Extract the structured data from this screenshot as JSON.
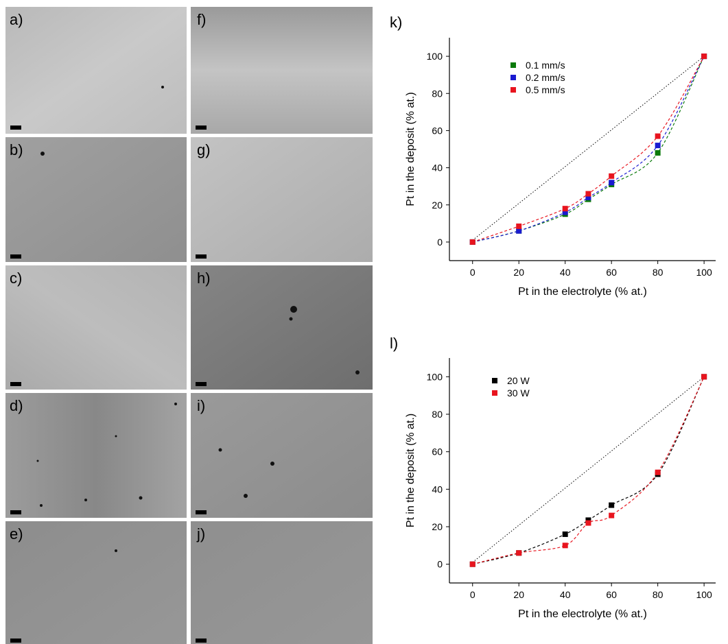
{
  "panels": [
    "a)",
    "b)",
    "c)",
    "d)",
    "e)",
    "f)",
    "g)",
    "h)",
    "i)",
    "j)"
  ],
  "chart_data": [
    {
      "type": "scatter",
      "panel": "k)",
      "x_label": "Pt in the electrolyte (% at.)",
      "y_label": "Pt in the deposit (% at.)",
      "x": [
        0,
        20,
        40,
        50,
        60,
        80,
        100
      ],
      "series": [
        {
          "name": "0.1 mm/s",
          "color": "#0a7a0a",
          "values": [
            0,
            6,
            15,
            23,
            31,
            48,
            100
          ]
        },
        {
          "name": "0.2 mm/s",
          "color": "#1a1ad0",
          "values": [
            0,
            6,
            16,
            24,
            32,
            52,
            100
          ]
        },
        {
          "name": "0.5 mm/s",
          "color": "#e8141e",
          "values": [
            0,
            8.5,
            18,
            26,
            35.5,
            57,
            100
          ]
        }
      ],
      "reference_line": {
        "x": [
          0,
          100
        ],
        "y": [
          1,
          100
        ]
      },
      "xlim": [
        -10,
        105
      ],
      "ylim": [
        -10,
        110
      ],
      "xticks": [
        0,
        20,
        40,
        60,
        80,
        100
      ],
      "yticks": [
        0,
        20,
        40,
        60,
        80,
        100
      ]
    },
    {
      "type": "scatter",
      "panel": "l)",
      "x_label": "Pt in the electrolyte (% at.)",
      "y_label": "Pt in the deposit (% at.)",
      "x": [
        0,
        20,
        40,
        50,
        60,
        80,
        100
      ],
      "series": [
        {
          "name": "20 W",
          "color": "#000000",
          "values": [
            0,
            6,
            16,
            23.5,
            31.5,
            48,
            100
          ]
        },
        {
          "name": "30 W",
          "color": "#e8141e",
          "values": [
            0,
            6,
            10,
            22,
            26,
            49,
            100
          ]
        }
      ],
      "reference_line": {
        "x": [
          0,
          100
        ],
        "y": [
          1,
          100
        ]
      },
      "xlim": [
        -10,
        105
      ],
      "ylim": [
        -10,
        110
      ],
      "xticks": [
        0,
        20,
        40,
        60,
        80,
        100
      ],
      "yticks": [
        0,
        20,
        40,
        60,
        80,
        100
      ]
    }
  ]
}
